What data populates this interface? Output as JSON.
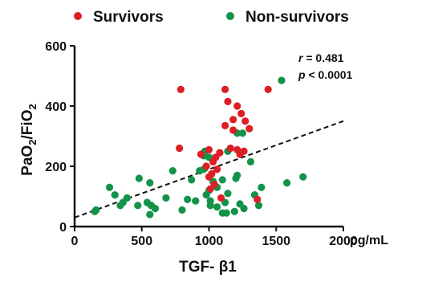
{
  "chart_data": {
    "type": "scatter",
    "title": "",
    "xlabel": "TGF- β1",
    "x_unit": "pg/mL",
    "ylabel_main": "PaO",
    "ylabel_sub1": "2",
    "ylabel_mid": "/FiO",
    "ylabel_sub2": "2",
    "xlim": [
      0,
      2000
    ],
    "ylim": [
      0,
      600
    ],
    "x_ticks": [
      0,
      500,
      1000,
      1500,
      2000
    ],
    "y_ticks": [
      0,
      200,
      400,
      600
    ],
    "grid": false,
    "legend_position": "top",
    "stats": {
      "r_symbol": "r",
      "r_value": " = 0.481",
      "p_symbol": "p",
      "p_value": " < 0.0001"
    },
    "trendline": {
      "x": [
        0,
        2000
      ],
      "y": [
        30,
        350
      ]
    },
    "series": [
      {
        "name": "Survivors",
        "color": "#dd1f26",
        "points": [
          [
            790,
            455
          ],
          [
            1120,
            455
          ],
          [
            1440,
            455
          ],
          [
            1140,
            415
          ],
          [
            1210,
            400
          ],
          [
            1240,
            375
          ],
          [
            1180,
            355
          ],
          [
            1120,
            335
          ],
          [
            1270,
            350
          ],
          [
            1300,
            325
          ],
          [
            1180,
            320
          ],
          [
            780,
            260
          ],
          [
            1160,
            260
          ],
          [
            1000,
            255
          ],
          [
            1080,
            245
          ],
          [
            940,
            240
          ],
          [
            1050,
            230
          ],
          [
            1030,
            215
          ],
          [
            1210,
            255
          ],
          [
            1260,
            250
          ],
          [
            1230,
            240
          ],
          [
            980,
            200
          ],
          [
            1060,
            190
          ],
          [
            1020,
            175
          ],
          [
            1000,
            165
          ],
          [
            1040,
            140
          ],
          [
            1010,
            125
          ],
          [
            1090,
            95
          ],
          [
            1360,
            90
          ]
        ]
      },
      {
        "name": "Non-survivors",
        "color": "#13934a",
        "points": [
          [
            1540,
            485
          ],
          [
            1210,
            310
          ],
          [
            1250,
            310
          ],
          [
            970,
            250
          ],
          [
            1140,
            250
          ],
          [
            960,
            235
          ],
          [
            1000,
            230
          ],
          [
            1310,
            215
          ],
          [
            730,
            185
          ],
          [
            930,
            185
          ],
          [
            960,
            190
          ],
          [
            1210,
            170
          ],
          [
            1200,
            160
          ],
          [
            1700,
            165
          ],
          [
            480,
            160
          ],
          [
            870,
            155
          ],
          [
            560,
            145
          ],
          [
            1030,
            150
          ],
          [
            1100,
            155
          ],
          [
            1580,
            145
          ],
          [
            260,
            130
          ],
          [
            1060,
            130
          ],
          [
            1390,
            130
          ],
          [
            1000,
            120
          ],
          [
            980,
            105
          ],
          [
            300,
            105
          ],
          [
            1140,
            110
          ],
          [
            1340,
            105
          ],
          [
            390,
            95
          ],
          [
            680,
            95
          ],
          [
            840,
            90
          ],
          [
            900,
            85
          ],
          [
            360,
            80
          ],
          [
            540,
            80
          ],
          [
            1010,
            85
          ],
          [
            1120,
            80
          ],
          [
            340,
            70
          ],
          [
            470,
            70
          ],
          [
            570,
            70
          ],
          [
            600,
            60
          ],
          [
            1060,
            65
          ],
          [
            1010,
            70
          ],
          [
            1260,
            60
          ],
          [
            1230,
            75
          ],
          [
            1370,
            70
          ],
          [
            160,
            55
          ],
          [
            150,
            50
          ],
          [
            560,
            40
          ],
          [
            800,
            55
          ],
          [
            1100,
            45
          ],
          [
            1130,
            45
          ],
          [
            1190,
            50
          ]
        ]
      }
    ]
  }
}
